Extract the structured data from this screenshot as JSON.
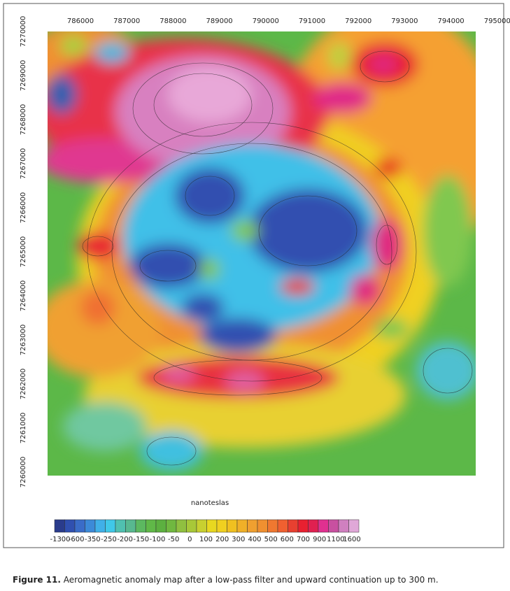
{
  "map": {
    "x_ticks": [
      786000,
      787000,
      788000,
      789000,
      790000,
      791000,
      792000,
      793000,
      794000,
      795000
    ],
    "y_ticks": [
      7270000,
      7269000,
      7268000,
      7267000,
      7266000,
      7265000,
      7264000,
      7263000,
      7262000,
      7261000,
      7260000
    ]
  },
  "legend": {
    "title": "nanoteslas",
    "labels": [
      -1300,
      -600,
      -350,
      -250,
      -200,
      -150,
      -100,
      -50,
      0,
      100,
      200,
      300,
      400,
      500,
      600,
      700,
      900,
      1100,
      1600
    ]
  },
  "caption": {
    "label": "Figure 11.",
    "text": "Aeromagnetic anomaly map after a low-pass filter and upward continuation up to 300 m."
  }
}
